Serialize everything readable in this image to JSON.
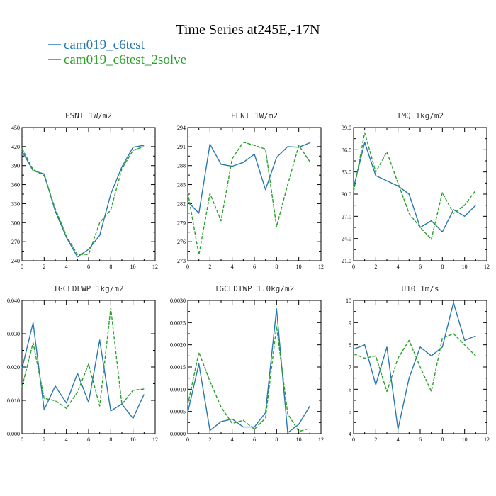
{
  "figure": {
    "title": "Time Series at245E,-17N",
    "legend": [
      {
        "label": "cam019_c6test",
        "color": "#2878b0",
        "dash": "solid"
      },
      {
        "label": "cam019_c6test_2solve",
        "color": "#2aa02a",
        "dash": "dashed"
      }
    ]
  },
  "chart_data": [
    {
      "type": "line",
      "title": "FSNT   1W/m2",
      "x": [
        0,
        1,
        2,
        3,
        4,
        5,
        6,
        7,
        8,
        9,
        10,
        11
      ],
      "xlim": [
        0,
        12
      ],
      "xticks": [
        0,
        2,
        4,
        6,
        8,
        10,
        12
      ],
      "ylim": [
        240,
        450
      ],
      "yticks": [
        240,
        270,
        300,
        330,
        360,
        390,
        420,
        450
      ],
      "ytick_labels": [
        "240",
        "270",
        "300",
        "330",
        "360",
        "390",
        "420",
        "450"
      ],
      "series": [
        {
          "name": "cam019_c6test",
          "values": [
            413,
            382,
            377,
            318,
            277,
            246,
            258,
            280,
            345,
            388,
            419,
            422
          ]
        },
        {
          "name": "cam019_c6test_2solve",
          "values": [
            417,
            384,
            374,
            322,
            279,
            250,
            250,
            300,
            320,
            385,
            414,
            420
          ]
        }
      ]
    },
    {
      "type": "line",
      "title": "FLNT   1W/m2",
      "x": [
        0,
        1,
        2,
        3,
        4,
        5,
        6,
        7,
        8,
        9,
        10,
        11
      ],
      "xlim": [
        0,
        12
      ],
      "xticks": [
        0,
        2,
        4,
        6,
        8,
        10,
        12
      ],
      "ylim": [
        273,
        294
      ],
      "yticks": [
        273,
        276,
        279,
        282,
        285,
        288,
        291,
        294
      ],
      "ytick_labels": [
        "273",
        "276",
        "279",
        "282",
        "285",
        "288",
        "291",
        "294"
      ],
      "series": [
        {
          "name": "cam019_c6test",
          "values": [
            282.3,
            280.5,
            291.4,
            288.2,
            287.9,
            288.5,
            289.8,
            284.2,
            289.3,
            291.0,
            290.9,
            291.6
          ]
        },
        {
          "name": "cam019_c6test_2solve",
          "values": [
            283.8,
            273.9,
            283.6,
            279.3,
            289.1,
            291.7,
            291.2,
            290.6,
            278.4,
            285.0,
            291.2,
            288.6
          ]
        }
      ]
    },
    {
      "type": "line",
      "title": "TMQ   1kg/m2",
      "x": [
        0,
        1,
        2,
        3,
        4,
        5,
        6,
        7,
        8,
        9,
        10,
        11
      ],
      "xlim": [
        0,
        12
      ],
      "xticks": [
        0,
        2,
        4,
        6,
        8,
        10,
        12
      ],
      "ylim": [
        21.0,
        39.0
      ],
      "yticks": [
        21,
        24,
        27,
        30,
        33,
        36,
        39
      ],
      "ytick_labels": [
        "21.0",
        "24.0",
        "27.0",
        "30.0",
        "33.0",
        "36.0",
        "39.0"
      ],
      "series": [
        {
          "name": "cam019_c6test",
          "values": [
            30.9,
            37.0,
            32.5,
            31.8,
            31.1,
            30.0,
            25.5,
            26.4,
            24.9,
            27.9,
            27.0,
            28.5
          ]
        },
        {
          "name": "cam019_c6test_2solve",
          "values": [
            30.3,
            38.3,
            33.0,
            35.7,
            31.5,
            27.4,
            25.5,
            23.9,
            30.2,
            27.4,
            28.5,
            30.5
          ]
        }
      ]
    },
    {
      "type": "line",
      "title": "TGCLDLWP   1kg/m2",
      "x": [
        0,
        1,
        2,
        3,
        4,
        5,
        6,
        7,
        8,
        9,
        10,
        11
      ],
      "xlim": [
        0,
        12
      ],
      "xticks": [
        0,
        2,
        4,
        6,
        8,
        10,
        12
      ],
      "ylim": [
        0,
        0.04
      ],
      "yticks": [
        0,
        0.01,
        0.02,
        0.03,
        0.04
      ],
      "ytick_labels": [
        "0.000",
        "0.010",
        "0.020",
        "0.030",
        "0.040"
      ],
      "series": [
        {
          "name": "cam019_c6test",
          "values": [
            0.0195,
            0.0333,
            0.0072,
            0.0143,
            0.0092,
            0.0181,
            0.0094,
            0.0281,
            0.0068,
            0.0089,
            0.0046,
            0.0118
          ]
        },
        {
          "name": "cam019_c6test_2solve",
          "values": [
            0.014,
            0.0273,
            0.0106,
            0.0099,
            0.0076,
            0.0125,
            0.0209,
            0.0083,
            0.0377,
            0.0088,
            0.013,
            0.0134
          ]
        }
      ]
    },
    {
      "type": "line",
      "title": "TGCLDIWP   1.0kg/m2",
      "x": [
        0,
        1,
        2,
        3,
        4,
        5,
        6,
        7,
        8,
        9,
        10,
        11
      ],
      "xlim": [
        0,
        12
      ],
      "xticks": [
        0,
        2,
        4,
        6,
        8,
        10,
        12
      ],
      "ylim": [
        0,
        0.003
      ],
      "yticks": [
        0,
        0.0005,
        0.001,
        0.0015,
        0.002,
        0.0025,
        0.003
      ],
      "ytick_labels": [
        "0.0000",
        "0.0005",
        "0.0010",
        "0.0015",
        "0.0020",
        "0.0025",
        "0.0030"
      ],
      "series": [
        {
          "name": "cam019_c6test",
          "values": [
            0.00048,
            0.00157,
            7e-05,
            0.00027,
            0.00033,
            0.00015,
            0.00015,
            0.00047,
            0.00281,
            2e-05,
            0.00021,
            0.00062
          ]
        },
        {
          "name": "cam019_c6test_2solve",
          "values": [
            0.00065,
            0.00183,
            0.00118,
            0.0006,
            0.00023,
            0.0003,
            0.0001,
            0.00035,
            0.00242,
            0.00045,
            5e-05,
            0.00012
          ]
        }
      ]
    },
    {
      "type": "line",
      "title": "U10   1m/s",
      "x": [
        0,
        1,
        2,
        3,
        4,
        5,
        6,
        7,
        8,
        9,
        10,
        11
      ],
      "xlim": [
        0,
        12
      ],
      "xticks": [
        0,
        2,
        4,
        6,
        8,
        10,
        12
      ],
      "ylim": [
        4,
        10
      ],
      "yticks": [
        4,
        5,
        6,
        7,
        8,
        9,
        10
      ],
      "ytick_labels": [
        "4",
        "5",
        "6",
        "7",
        "8",
        "9",
        "10"
      ],
      "series": [
        {
          "name": "cam019_c6test",
          "values": [
            7.8,
            8.0,
            6.2,
            7.9,
            4.2,
            6.5,
            7.9,
            7.5,
            7.9,
            9.9,
            8.2,
            8.4
          ]
        },
        {
          "name": "cam019_c6test_2solve",
          "values": [
            7.6,
            7.4,
            7.5,
            5.9,
            7.4,
            8.2,
            7.0,
            5.9,
            8.3,
            8.5,
            8.0,
            7.5
          ]
        }
      ]
    }
  ]
}
